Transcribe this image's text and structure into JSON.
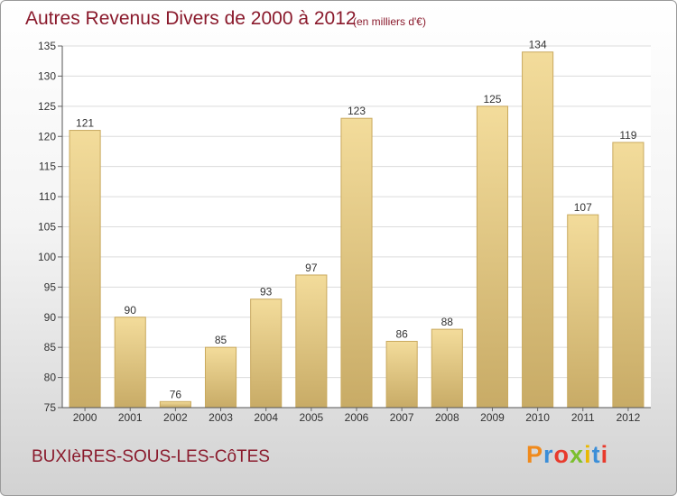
{
  "title": "Autres Revenus Divers de 2000 à 2012",
  "subtitle": "(en milliers d'€)",
  "commune": "BUXIèRES-SOUS-LES-CôTES",
  "logo": [
    "P",
    "r",
    "o",
    "x",
    "i",
    "t",
    "i"
  ],
  "chart_data": {
    "type": "bar",
    "title": "Autres Revenus Divers de 2000 à 2012",
    "subtitle": "(en milliers d'€)",
    "categories": [
      "2000",
      "2001",
      "2002",
      "2003",
      "2004",
      "2005",
      "2006",
      "2007",
      "2008",
      "2009",
      "2010",
      "2011",
      "2012"
    ],
    "values": [
      121,
      90,
      76,
      85,
      93,
      97,
      123,
      86,
      88,
      125,
      134,
      107,
      119
    ],
    "ylim": [
      75,
      135
    ],
    "yticks": [
      75,
      80,
      85,
      90,
      95,
      100,
      105,
      110,
      115,
      120,
      125,
      130,
      135
    ],
    "grid": true,
    "xlabel": "",
    "ylabel": "",
    "bar_color": "#e8cc84",
    "bar_edge_color": "#c9a95e"
  }
}
